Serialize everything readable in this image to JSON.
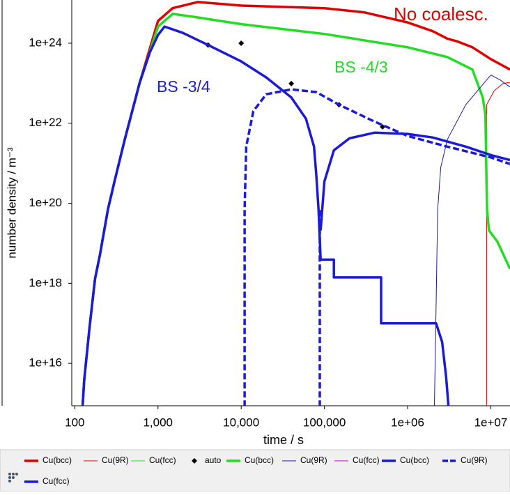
{
  "chart_data": {
    "type": "line",
    "x_label": "time / s",
    "y_label": "number density / m⁻³",
    "log_x": true,
    "log_y": true,
    "xlim": [
      92,
      17000000.0
    ],
    "ylim": [
      870000000000000.0,
      1.2e+25
    ],
    "xticks": [
      100,
      {
        "value": 1000,
        "label": "1,000"
      },
      {
        "value": 10000,
        "label": "10,000"
      },
      {
        "value": 100000,
        "label": "100,000"
      },
      {
        "value": 1000000,
        "label": "1e+06"
      },
      {
        "value": 10000000,
        "label": "1e+07"
      }
    ],
    "yticks": [
      {
        "value": 1e+16,
        "label": "1e+16"
      },
      {
        "value": 1e+18,
        "label": "1e+18"
      },
      {
        "value": 1e+20,
        "label": "1e+20"
      },
      {
        "value": 1e+22,
        "label": "1e+22"
      },
      {
        "value": 1e+24,
        "label": "1e+24"
      }
    ],
    "annotations": [
      {
        "text": "No coalesc.",
        "color": "#e00000"
      },
      {
        "text": "BS -4/3",
        "color": "#22dd22"
      },
      {
        "text": "BS -3/4",
        "color": "#1a1ad8"
      }
    ],
    "series": [
      {
        "name": "Cu(bcc)",
        "color": "#e00000",
        "width": 3.5,
        "dash": false,
        "x": [
          124,
          130,
          150,
          175,
          200,
          250,
          300,
          400,
          600,
          1000,
          1500,
          3000,
          10000,
          100000,
          300000,
          1000000,
          2000000,
          3000000,
          4000000,
          6000000,
          10000000,
          17000000
        ],
        "values": [
          830000000000000.0,
          3900000000000000.0,
          7.6e+16,
          1.3e+18,
          5e+18,
          7e+19,
          3.5e+20,
          4e+21,
          1e+23,
          3.6e+24,
          7.5e+24,
          1.07e+25,
          8.7e+24,
          7.5e+24,
          5.9e+24,
          3.3e+24,
          2e+24,
          1.3e+24,
          1.1e+24,
          7.9e+23,
          4e+23,
          2.2e+23
        ]
      },
      {
        "name": "Cu(9R)",
        "color": "#e00000",
        "width": 1,
        "dash": false,
        "x": [
          8900000,
          8900000,
          11000000,
          14000000,
          17000000
        ],
        "values": [
          830000000000000.0,
          2.9e+22,
          6.5e+22,
          9.8e+22,
          1.05e+23
        ]
      },
      {
        "name": "Cu(fcc)",
        "color": "#22dd22",
        "width": 1,
        "dash": false
      },
      {
        "name": "auto",
        "color": "#000000",
        "marker": "diamond",
        "x": [
          4000,
          10000,
          40000,
          150000,
          500000
        ],
        "values": [
          9e+23,
          1e+24,
          9.8e+22,
          2.9e+22,
          8.1e+21
        ]
      },
      {
        "name": "Cu(bcc)",
        "color": "#22dd22",
        "width": 3.5,
        "dash": false,
        "x": [
          124,
          130,
          150,
          175,
          200,
          250,
          300,
          400,
          600,
          1000,
          1500,
          3000,
          10000,
          100000,
          1000000,
          3000000,
          6000000,
          8000000,
          8600000,
          9000000,
          9500000,
          12000000,
          17000000
        ],
        "values": [
          830000000000000.0,
          3900000000000000.0,
          7.6e+16,
          1.3e+18,
          5e+18,
          7e+19,
          3.5e+20,
          4e+21,
          1e+23,
          2.6e+24,
          5.4e+24,
          4.4e+24,
          3e+24,
          1.7e+24,
          7.9e+23,
          4.5e+23,
          2.2e+23,
          4.4e+22,
          1.6e+22,
          7e+19,
          2.1e+19,
          1.1e+19,
          2.3e+18
        ]
      },
      {
        "name": "Cu(9R)",
        "color": "#1a1a9a",
        "width": 1,
        "dash": false,
        "x": [
          2100000,
          2300000,
          2500000,
          3000000,
          5000000,
          10000000,
          13000000,
          17000000
        ],
        "values": [
          830000000000000.0,
          7e+19,
          7.8e+20,
          3.9e+21,
          2.9e+22,
          1.6e+23,
          1.2e+23,
          8e+22
        ]
      },
      {
        "name": "Cu(fcc)",
        "color": "#c000c0",
        "width": 1,
        "dash": false
      },
      {
        "name": "Cu(bcc)",
        "color": "#1a1ad8",
        "width": 3.5,
        "dash": false,
        "x": [
          124,
          130,
          150,
          175,
          200,
          250,
          300,
          400,
          600,
          800,
          1000,
          1200,
          2000,
          4000,
          10000,
          20000,
          40000,
          60000,
          75000,
          80000,
          85000,
          90000,
          130000,
          130000,
          480000,
          480000,
          2200000,
          2600000,
          2900000,
          3100000
        ],
        "values": [
          830000000000000.0,
          3900000000000000.0,
          7.6e+16,
          1.3e+18,
          5e+18,
          7e+19,
          3.5e+20,
          4e+21,
          1e+23,
          6e+23,
          1.6e+24,
          2.6e+24,
          1.8e+24,
          9e+23,
          3.5e+23,
          1.4e+23,
          4.4e+22,
          1.3e+22,
          2.6e+21,
          5e+20,
          7e+19,
          3.9e+18,
          3.9e+18,
          1.4e+18,
          1.4e+18,
          1e+17,
          1e+17,
          3.4e+16,
          4600000000000000.0,
          830000000000000.0
        ]
      },
      {
        "name": "Cu(9R)",
        "color": "#1a1ad8",
        "width": 3.5,
        "dash": true,
        "x": [
          11000,
          11000,
          11500,
          14000,
          20000,
          40000,
          80000,
          150000,
          400000,
          1000000,
          3000000,
          10000000,
          17000000,
          null,
          88000,
          88000
        ],
        "values": [
          830000000000000.0,
          7e+19,
          2.6e+21,
          2e+22,
          5.3e+22,
          7e+22,
          6e+22,
          2.9e+22,
          1.1e+22,
          4.8e+21,
          2.6e+21,
          1.4e+21,
          9.6e+20,
          null,
          830000000000000.0,
          7e+19
        ]
      },
      {
        "name": "Cu(fcc)",
        "color": "#1a1ad8",
        "width": 3.5,
        "dash": false,
        "x": [
          90000,
          100000,
          130000,
          200000,
          400000,
          1000000,
          2000000,
          5000000,
          10000000,
          17000000
        ],
        "values": [
          2.1e+19,
          3.5e+20,
          2.1e+21,
          4.2e+21,
          5.8e+21,
          5.4e+21,
          4.4e+21,
          2.6e+21,
          1.6e+21,
          1.2e+21
        ]
      }
    ]
  }
}
